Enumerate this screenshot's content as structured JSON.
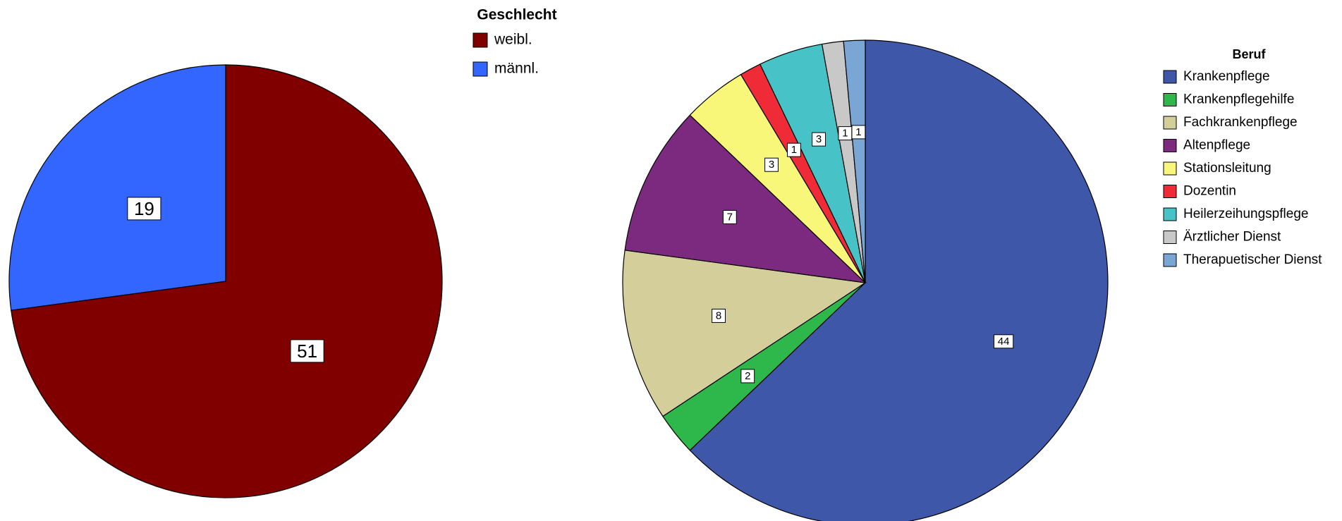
{
  "chart_data": [
    {
      "type": "pie",
      "legend_title": "Geschlecht",
      "categories": [
        "weibl.",
        "männl."
      ],
      "values": [
        51,
        19
      ],
      "colors": [
        "#800000",
        "#3366ff"
      ]
    },
    {
      "type": "pie",
      "legend_title": "Beruf",
      "categories": [
        "Krankenpflege",
        "Krankenpflegehilfe",
        "Fachkrankenpflege",
        "Altenpflege",
        "Stationsleitung",
        "Dozentin",
        "Heilerzeihungspflege",
        "Ärztlicher Dienst",
        "Therapuetischer Dienst"
      ],
      "values": [
        44,
        2,
        8,
        7,
        3,
        1,
        3,
        1,
        1
      ],
      "colors": [
        "#3f57a8",
        "#2eb84b",
        "#d4cf9a",
        "#7b2a7f",
        "#f8f77a",
        "#ee2b36",
        "#47c2c6",
        "#c8c8c8",
        "#7aa6d6"
      ]
    }
  ]
}
